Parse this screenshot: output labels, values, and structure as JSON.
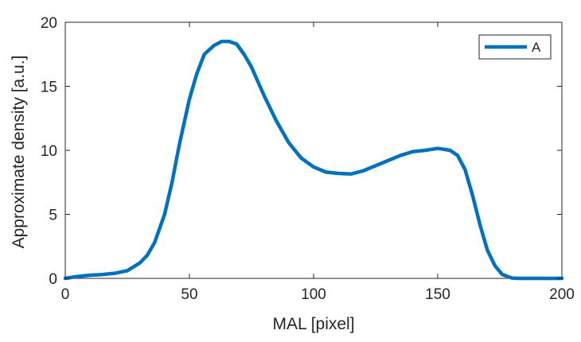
{
  "chart_data": {
    "type": "line",
    "xlabel": "MAL [pixel]",
    "ylabel": "Approximate density [a.u.]",
    "xlim": [
      0,
      200
    ],
    "ylim": [
      0,
      20
    ],
    "xticks": [
      0,
      50,
      100,
      150,
      200
    ],
    "yticks": [
      0,
      5,
      10,
      15,
      20
    ],
    "grid": false,
    "legend_position": "top-right",
    "line_color": "#0072BD",
    "series": [
      {
        "name": "A",
        "x": [
          0,
          5,
          10,
          15,
          20,
          25,
          30,
          33,
          36,
          40,
          43,
          46,
          50,
          53,
          56,
          60,
          63,
          66,
          69,
          72,
          75,
          80,
          85,
          90,
          95,
          100,
          105,
          110,
          115,
          120,
          125,
          130,
          135,
          140,
          145,
          150,
          155,
          158,
          161,
          164,
          167,
          170,
          173,
          176,
          180,
          183,
          190,
          200
        ],
        "y": [
          0,
          0.15,
          0.25,
          0.3,
          0.4,
          0.6,
          1.2,
          1.8,
          2.8,
          5.0,
          7.5,
          10.5,
          14.0,
          16.0,
          17.5,
          18.2,
          18.5,
          18.5,
          18.3,
          17.5,
          16.5,
          14.3,
          12.3,
          10.6,
          9.4,
          8.7,
          8.3,
          8.2,
          8.15,
          8.4,
          8.8,
          9.2,
          9.6,
          9.9,
          10.0,
          10.15,
          10.0,
          9.6,
          8.5,
          6.5,
          4.2,
          2.2,
          1.0,
          0.3,
          0.02,
          0.0,
          0.0,
          0.0
        ]
      }
    ]
  }
}
